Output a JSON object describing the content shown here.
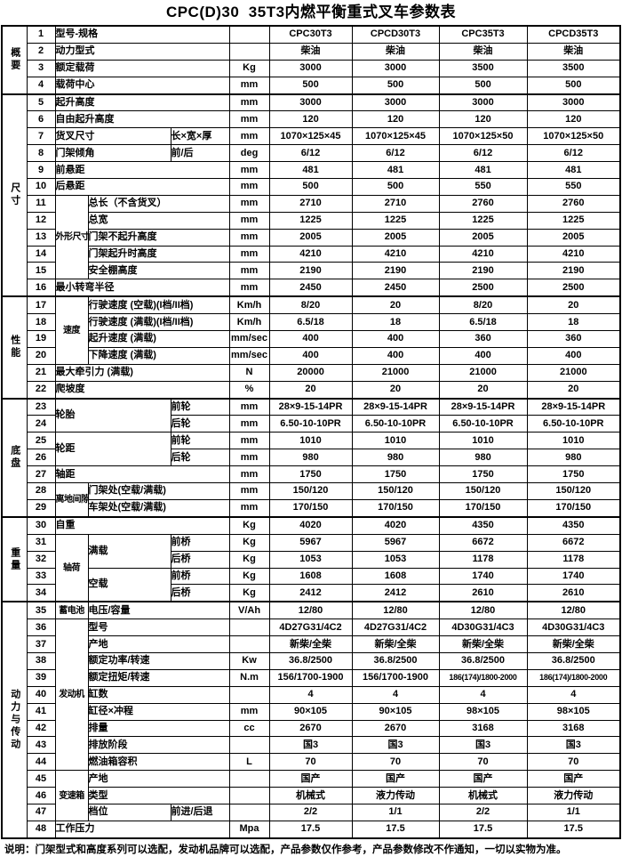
{
  "title": "CPC(D)30  35T3内燃平衡重式叉车参数表",
  "note": "说明：门架型式和高度系列可以选配，发动机品牌可以选配，产品参数仅作参考，产品参数修改不作通知，一切以实物为准。",
  "models": [
    "CPC30T3",
    "CPCD30T3",
    "CPC35T3",
    "CPCD35T3"
  ],
  "sections": [
    {
      "label": "概要",
      "from": 1,
      "to": 4
    },
    {
      "label": "尺寸",
      "from": 5,
      "to": 16
    },
    {
      "label": "性能",
      "from": 17,
      "to": 22
    },
    {
      "label": "底盘",
      "from": 23,
      "to": 29
    },
    {
      "label": "重量",
      "from": 30,
      "to": 34
    },
    {
      "label": "动力与传动",
      "from": 35,
      "to": 48
    }
  ],
  "rows": [
    {
      "num": "1",
      "cells": [
        {
          "t": "型号-规格",
          "cs": 3
        }
      ],
      "unit": "",
      "values": [
        "CPC30T3",
        "CPCD30T3",
        "CPC35T3",
        "CPCD35T3"
      ]
    },
    {
      "num": "2",
      "cells": [
        {
          "t": "动力型式",
          "cs": 3
        }
      ],
      "unit": "",
      "values": [
        "柴油",
        "柴油",
        "柴油",
        "柴油"
      ]
    },
    {
      "num": "3",
      "cells": [
        {
          "t": "额定载荷",
          "cs": 3
        }
      ],
      "unit": "Kg",
      "values": [
        "3000",
        "3000",
        "3500",
        "3500"
      ]
    },
    {
      "num": "4",
      "cells": [
        {
          "t": "载荷中心",
          "cs": 3
        }
      ],
      "unit": "mm",
      "values": [
        "500",
        "500",
        "500",
        "500"
      ]
    },
    {
      "num": "5",
      "cells": [
        {
          "t": "起升高度",
          "cs": 3
        }
      ],
      "unit": "mm",
      "values": [
        "3000",
        "3000",
        "3000",
        "3000"
      ]
    },
    {
      "num": "6",
      "cells": [
        {
          "t": "自由起升高度",
          "cs": 3
        }
      ],
      "unit": "mm",
      "values": [
        "120",
        "120",
        "120",
        "120"
      ]
    },
    {
      "num": "7",
      "cells": [
        {
          "t": "货叉尺寸",
          "cs": 2
        },
        {
          "t": "长×宽×厚",
          "cs": 1
        }
      ],
      "unit": "mm",
      "values": [
        "1070×125×45",
        "1070×125×45",
        "1070×125×50",
        "1070×125×50"
      ]
    },
    {
      "num": "8",
      "cells": [
        {
          "t": "门架倾角",
          "cs": 2
        },
        {
          "t": "前/后",
          "cs": 1
        }
      ],
      "unit": "deg",
      "values": [
        "6/12",
        "6/12",
        "6/12",
        "6/12"
      ]
    },
    {
      "num": "9",
      "cells": [
        {
          "t": "前悬距",
          "cs": 3
        }
      ],
      "unit": "mm",
      "values": [
        "481",
        "481",
        "481",
        "481"
      ]
    },
    {
      "num": "10",
      "cells": [
        {
          "t": "后悬距",
          "cs": 3
        }
      ],
      "unit": "mm",
      "values": [
        "500",
        "500",
        "550",
        "550"
      ]
    },
    {
      "num": "11",
      "cells": [
        {
          "t": "外形尺寸",
          "cs": 1,
          "rs": 5
        },
        {
          "t": "总长（不含货叉）",
          "cs": 2
        }
      ],
      "unit": "mm",
      "values": [
        "2710",
        "2710",
        "2760",
        "2760"
      ]
    },
    {
      "num": "12",
      "cells": [
        {
          "t": "总宽",
          "cs": 2
        }
      ],
      "unit": "mm",
      "values": [
        "1225",
        "1225",
        "1225",
        "1225"
      ]
    },
    {
      "num": "13",
      "cells": [
        {
          "t": "门架不起升高度",
          "cs": 2
        }
      ],
      "unit": "mm",
      "values": [
        "2005",
        "2005",
        "2005",
        "2005"
      ]
    },
    {
      "num": "14",
      "cells": [
        {
          "t": "门架起升时高度",
          "cs": 2
        }
      ],
      "unit": "mm",
      "values": [
        "4210",
        "4210",
        "4210",
        "4210"
      ]
    },
    {
      "num": "15",
      "cells": [
        {
          "t": "安全棚高度",
          "cs": 2
        }
      ],
      "unit": "mm",
      "values": [
        "2190",
        "2190",
        "2190",
        "2190"
      ]
    },
    {
      "num": "16",
      "cells": [
        {
          "t": "最小转弯半径",
          "cs": 3
        }
      ],
      "unit": "mm",
      "values": [
        "2450",
        "2450",
        "2500",
        "2500"
      ]
    },
    {
      "num": "17",
      "cells": [
        {
          "t": "速度",
          "cs": 1,
          "rs": 4
        },
        {
          "t": "行驶速度 (空载)(I档/II档)",
          "cs": 2
        }
      ],
      "unit": "Km/h",
      "values": [
        "8/20",
        "20",
        "8/20",
        "20"
      ]
    },
    {
      "num": "18",
      "cells": [
        {
          "t": "行驶速度 (满载)(I档/II档)",
          "cs": 2
        }
      ],
      "unit": "Km/h",
      "values": [
        "6.5/18",
        "18",
        "6.5/18",
        "18"
      ]
    },
    {
      "num": "19",
      "cells": [
        {
          "t": "起升速度  (满载)",
          "cs": 2
        }
      ],
      "unit": "mm/sec",
      "values": [
        "400",
        "400",
        "360",
        "360"
      ]
    },
    {
      "num": "20",
      "cells": [
        {
          "t": "下降速度 (满载)",
          "cs": 2
        }
      ],
      "unit": "mm/sec",
      "values": [
        "400",
        "400",
        "400",
        "400"
      ]
    },
    {
      "num": "21",
      "cells": [
        {
          "t": "最大牵引力 (满载)",
          "cs": 3
        }
      ],
      "unit": "N",
      "values": [
        "20000",
        "21000",
        "21000",
        "21000"
      ]
    },
    {
      "num": "22",
      "cells": [
        {
          "t": "爬坡度",
          "cs": 3
        }
      ],
      "unit": "%",
      "values": [
        "20",
        "20",
        "20",
        "20"
      ]
    },
    {
      "num": "23",
      "cells": [
        {
          "t": "轮胎",
          "cs": 2,
          "rs": 2
        },
        {
          "t": "前轮",
          "cs": 1
        }
      ],
      "unit": "mm",
      "values": [
        "28×9-15-14PR",
        "28×9-15-14PR",
        "28×9-15-14PR",
        "28×9-15-14PR"
      ]
    },
    {
      "num": "24",
      "cells": [
        {
          "t": "后轮",
          "cs": 1
        }
      ],
      "unit": "mm",
      "values": [
        "6.50-10-10PR",
        "6.50-10-10PR",
        "6.50-10-10PR",
        "6.50-10-10PR"
      ]
    },
    {
      "num": "25",
      "cells": [
        {
          "t": "轮距",
          "cs": 2,
          "rs": 2
        },
        {
          "t": "前轮",
          "cs": 1
        }
      ],
      "unit": "mm",
      "values": [
        "1010",
        "1010",
        "1010",
        "1010"
      ]
    },
    {
      "num": "26",
      "cells": [
        {
          "t": "后轮",
          "cs": 1
        }
      ],
      "unit": "mm",
      "values": [
        "980",
        "980",
        "980",
        "980"
      ]
    },
    {
      "num": "27",
      "cells": [
        {
          "t": "轴距",
          "cs": 3
        }
      ],
      "unit": "mm",
      "values": [
        "1750",
        "1750",
        "1750",
        "1750"
      ]
    },
    {
      "num": "28",
      "cells": [
        {
          "t": "离地间隙",
          "cs": 1,
          "rs": 2
        },
        {
          "t": "门架处(空载/满载)",
          "cs": 2
        }
      ],
      "unit": "mm",
      "values": [
        "150/120",
        "150/120",
        "150/120",
        "150/120"
      ]
    },
    {
      "num": "29",
      "cells": [
        {
          "t": "车架处(空载/满载)",
          "cs": 2
        }
      ],
      "unit": "mm",
      "values": [
        "170/150",
        "170/150",
        "170/150",
        "170/150"
      ]
    },
    {
      "num": "30",
      "cells": [
        {
          "t": "自重",
          "cs": 3
        }
      ],
      "unit": "Kg",
      "values": [
        "4020",
        "4020",
        "4350",
        "4350"
      ]
    },
    {
      "num": "31",
      "cells": [
        {
          "t": "轴荷",
          "cs": 1,
          "rs": 4
        },
        {
          "t": "满载",
          "cs": 1,
          "rs": 2
        },
        {
          "t": "前桥",
          "cs": 1
        }
      ],
      "unit": "Kg",
      "values": [
        "5967",
        "5967",
        "6672",
        "6672"
      ]
    },
    {
      "num": "32",
      "cells": [
        {
          "t": "后桥",
          "cs": 1
        }
      ],
      "unit": "Kg",
      "values": [
        "1053",
        "1053",
        "1178",
        "1178"
      ]
    },
    {
      "num": "33",
      "cells": [
        {
          "t": "空载",
          "cs": 1,
          "rs": 2
        },
        {
          "t": "前桥",
          "cs": 1
        }
      ],
      "unit": "Kg",
      "values": [
        "1608",
        "1608",
        "1740",
        "1740"
      ]
    },
    {
      "num": "34",
      "cells": [
        {
          "t": "后桥",
          "cs": 1
        }
      ],
      "unit": "Kg",
      "values": [
        "2412",
        "2412",
        "2610",
        "2610"
      ]
    },
    {
      "num": "35",
      "cells": [
        {
          "t": "蓄电池",
          "cs": 1
        },
        {
          "t": "电压/容量",
          "cs": 2
        }
      ],
      "unit": "V/Ah",
      "values": [
        "12/80",
        "12/80",
        "12/80",
        "12/80"
      ]
    },
    {
      "num": "36",
      "cells": [
        {
          "t": "发动机",
          "cs": 1,
          "rs": 9
        },
        {
          "t": "型号",
          "cs": 2
        }
      ],
      "unit": "",
      "values": [
        "4D27G31/4C2",
        "4D27G31/4C2",
        "4D30G31/4C3",
        "4D30G31/4C3"
      ]
    },
    {
      "num": "37",
      "cells": [
        {
          "t": "产地",
          "cs": 2
        }
      ],
      "unit": "",
      "values": [
        "新柴/全柴",
        "新柴/全柴",
        "新柴/全柴",
        "新柴/全柴"
      ]
    },
    {
      "num": "38",
      "cells": [
        {
          "t": "额定功率/转速",
          "cs": 2
        }
      ],
      "unit": "Kw",
      "values": [
        "36.8/2500",
        "36.8/2500",
        "36.8/2500",
        "36.8/2500"
      ]
    },
    {
      "num": "39",
      "cells": [
        {
          "t": "额定扭矩/转速",
          "cs": 2
        }
      ],
      "unit": "N.m",
      "values": [
        "156/1700-1900",
        "156/1700-1900",
        "186(174)/1800-2000",
        "186(174)/1800-2000"
      ]
    },
    {
      "num": "40",
      "cells": [
        {
          "t": "缸数",
          "cs": 2
        }
      ],
      "unit": "",
      "values": [
        "4",
        "4",
        "4",
        "4"
      ]
    },
    {
      "num": "41",
      "cells": [
        {
          "t": "缸径×冲程",
          "cs": 2
        }
      ],
      "unit": "mm",
      "values": [
        "90×105",
        "90×105",
        "98×105",
        "98×105"
      ]
    },
    {
      "num": "42",
      "cells": [
        {
          "t": "排量",
          "cs": 2
        }
      ],
      "unit": "cc",
      "values": [
        "2670",
        "2670",
        "3168",
        "3168"
      ]
    },
    {
      "num": "43",
      "cells": [
        {
          "t": "排放阶段",
          "cs": 2
        }
      ],
      "unit": "",
      "values": [
        "国3",
        "国3",
        "国3",
        "国3"
      ]
    },
    {
      "num": "44",
      "cells": [
        {
          "t": "燃油箱容积",
          "cs": 2
        }
      ],
      "unit": "L",
      "values": [
        "70",
        "70",
        "70",
        "70"
      ]
    },
    {
      "num": "45",
      "cells": [
        {
          "t": "变速箱",
          "cs": 1,
          "rs": 3
        },
        {
          "t": "产地",
          "cs": 2
        }
      ],
      "unit": "",
      "values": [
        "国产",
        "国产",
        "国产",
        "国产"
      ]
    },
    {
      "num": "46",
      "cells": [
        {
          "t": "类型",
          "cs": 2
        }
      ],
      "unit": "",
      "values": [
        "机械式",
        "液力传动",
        "机械式",
        "液力传动"
      ]
    },
    {
      "num": "47",
      "cells": [
        {
          "t": "档位",
          "cs": 1
        },
        {
          "t": "前进/后退",
          "cs": 1
        }
      ],
      "unit": "",
      "values": [
        "2/2",
        "1/1",
        "2/2",
        "1/1"
      ]
    },
    {
      "num": "48",
      "cells": [
        {
          "t": "工作压力",
          "cs": 3
        }
      ],
      "unit": "Mpa",
      "values": [
        "17.5",
        "17.5",
        "17.5",
        "17.5"
      ]
    }
  ]
}
